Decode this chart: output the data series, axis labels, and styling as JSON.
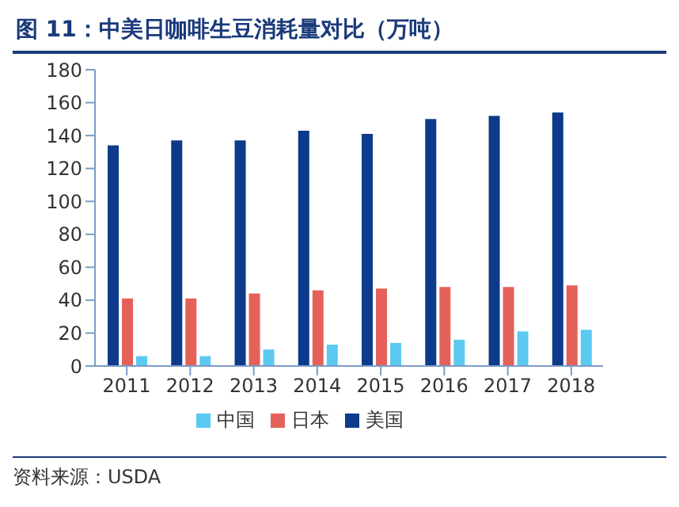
{
  "chart_data": {
    "type": "bar",
    "title": "图 11：中美日咖啡生豆消耗量对比（万吨）",
    "categories": [
      "2011",
      "2012",
      "2013",
      "2014",
      "2015",
      "2016",
      "2017",
      "2018"
    ],
    "series": [
      {
        "name": "美国",
        "color": "#0d3a8a",
        "values": [
          134,
          137,
          137,
          143,
          141,
          150,
          152,
          154
        ]
      },
      {
        "name": "日本",
        "color": "#e4615a",
        "values": [
          41,
          41,
          44,
          46,
          47,
          48,
          48,
          49
        ]
      },
      {
        "name": "中国",
        "color": "#5bc9f0",
        "values": [
          6,
          6,
          10,
          13,
          14,
          16,
          21,
          22
        ]
      }
    ],
    "ylim": [
      0,
      180
    ],
    "yticks": [
      0,
      20,
      40,
      60,
      80,
      100,
      120,
      140,
      160,
      180
    ],
    "grid": false,
    "legend": "bottom",
    "annotations": [
      "资料来源：USDA"
    ]
  }
}
